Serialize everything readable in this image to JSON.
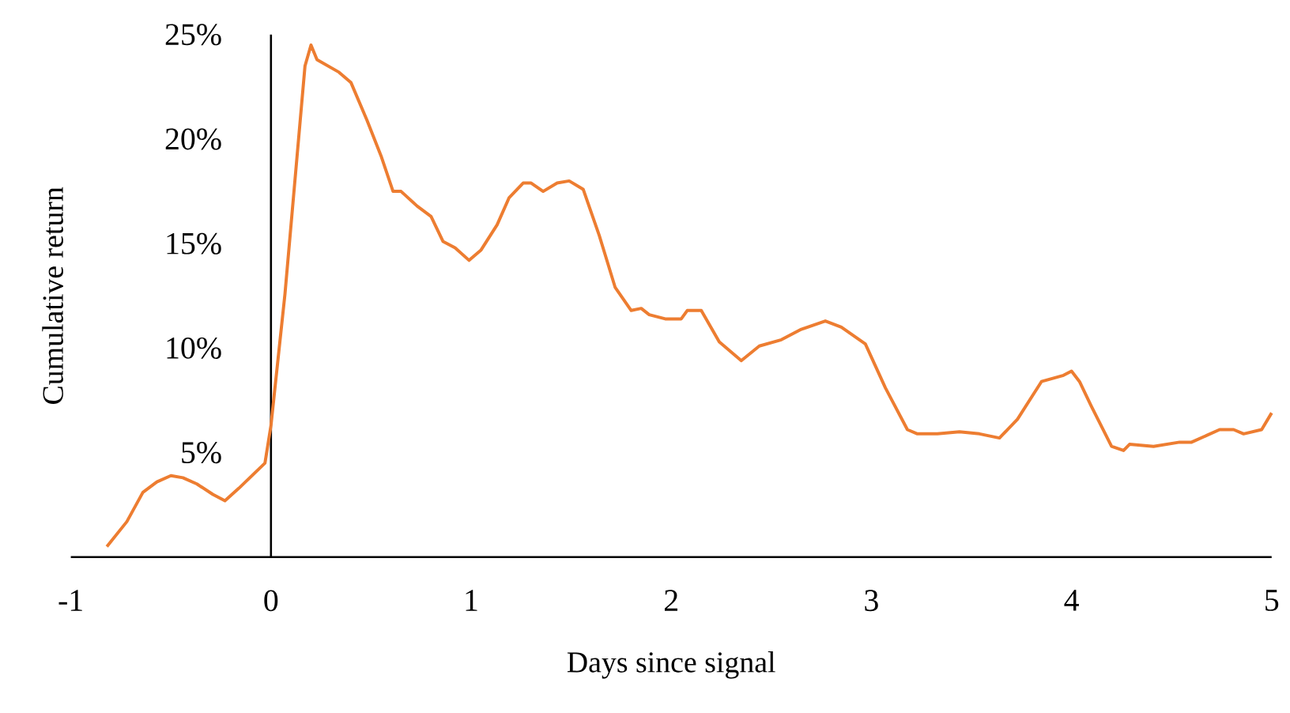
{
  "chart_data": {
    "type": "line",
    "xlabel": "Days since signal",
    "ylabel": "Cumulative return",
    "color": "#ed7d31",
    "xlim": [
      -1,
      5
    ],
    "ylim": [
      0,
      25
    ],
    "xticks": [
      -1,
      0,
      1,
      2,
      3,
      4,
      5
    ],
    "yticks": [
      {
        "value": 5,
        "label": "5%"
      },
      {
        "value": 10,
        "label": "10%"
      },
      {
        "value": 15,
        "label": "15%"
      },
      {
        "value": 20,
        "label": "20%"
      },
      {
        "value": 25,
        "label": "25%"
      }
    ],
    "x": [
      -0.82,
      -0.72,
      -0.64,
      -0.57,
      -0.5,
      -0.44,
      -0.37,
      -0.29,
      -0.23,
      -0.16,
      -0.03,
      0.0,
      0.07,
      0.17,
      0.2,
      0.23,
      0.34,
      0.4,
      0.48,
      0.55,
      0.61,
      0.65,
      0.73,
      0.8,
      0.86,
      0.92,
      0.99,
      1.05,
      1.13,
      1.19,
      1.26,
      1.3,
      1.36,
      1.43,
      1.49,
      1.56,
      1.64,
      1.72,
      1.8,
      1.85,
      1.89,
      1.97,
      2.05,
      2.08,
      2.15,
      2.24,
      2.35,
      2.44,
      2.55,
      2.65,
      2.77,
      2.85,
      2.97,
      3.07,
      3.18,
      3.23,
      3.33,
      3.44,
      3.54,
      3.64,
      3.73,
      3.85,
      3.96,
      4.0,
      4.04,
      4.1,
      4.2,
      4.26,
      4.29,
      4.41,
      4.54,
      4.6,
      4.74,
      4.81,
      4.86,
      4.95,
      5.0
    ],
    "values": [
      0.5,
      1.7,
      3.1,
      3.6,
      3.9,
      3.8,
      3.5,
      3.0,
      2.7,
      3.3,
      4.5,
      6.3,
      12.6,
      23.5,
      24.5,
      23.8,
      23.2,
      22.7,
      20.9,
      19.2,
      17.5,
      17.5,
      16.8,
      16.3,
      15.1,
      14.8,
      14.2,
      14.7,
      15.9,
      17.2,
      17.9,
      17.9,
      17.5,
      17.9,
      18.0,
      17.6,
      15.4,
      12.9,
      11.8,
      11.9,
      11.6,
      11.4,
      11.4,
      11.8,
      11.8,
      10.3,
      9.4,
      10.1,
      10.4,
      10.9,
      11.3,
      11.0,
      10.2,
      8.1,
      6.1,
      5.9,
      5.9,
      6.0,
      5.9,
      5.7,
      6.6,
      8.4,
      8.7,
      8.9,
      8.4,
      7.2,
      5.3,
      5.1,
      5.4,
      5.3,
      5.5,
      5.5,
      6.1,
      6.1,
      5.9,
      6.1,
      6.9
    ]
  }
}
